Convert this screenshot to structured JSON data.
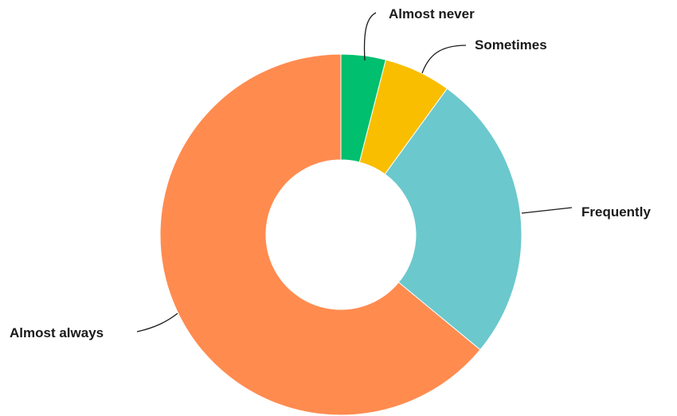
{
  "chart_data": {
    "type": "pie",
    "style": "donut",
    "categories": [
      "Almost never",
      "Sometimes",
      "Frequently",
      "Almost always"
    ],
    "values": [
      4,
      6,
      26,
      64
    ],
    "colors": [
      "#00bf6f",
      "#f9be00",
      "#6bc8cd",
      "#ff8b4f"
    ],
    "labels_outside": true,
    "legend": "none"
  }
}
